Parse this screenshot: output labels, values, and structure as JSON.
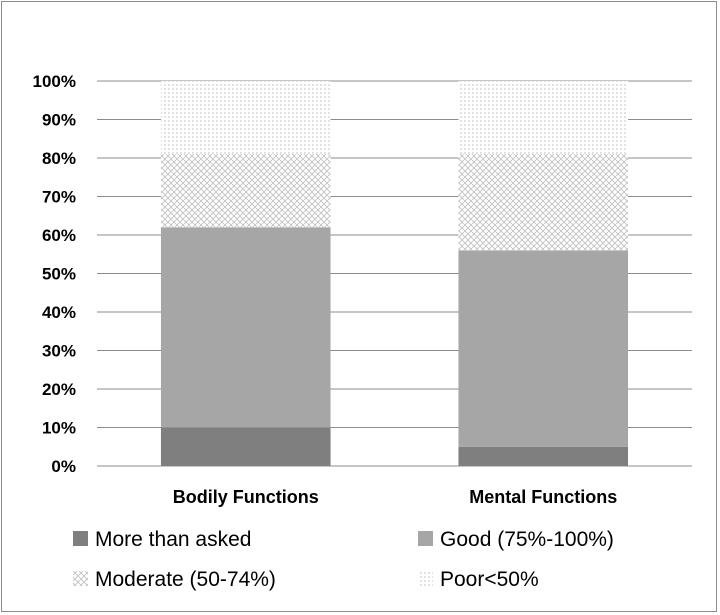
{
  "chart_data": {
    "type": "bar",
    "stacked": true,
    "percent": true,
    "categories": [
      "Bodily Functions",
      "Mental Functions"
    ],
    "series": [
      {
        "name": "More than asked",
        "values": [
          10,
          5
        ],
        "color": "#7f7f7f",
        "pattern": "solid"
      },
      {
        "name": "Good (75%-100%)",
        "values": [
          52,
          51
        ],
        "color": "#a6a6a6",
        "pattern": "solid"
      },
      {
        "name": "Moderate (50-74%)",
        "values": [
          19,
          25
        ],
        "color": "#bfbfbf",
        "pattern": "crosshatch"
      },
      {
        "name": "Poor<50%",
        "values": [
          19,
          19
        ],
        "color": "#8c8c8c",
        "pattern": "dots"
      }
    ],
    "yticks": [
      "0%",
      "10%",
      "20%",
      "30%",
      "40%",
      "50%",
      "60%",
      "70%",
      "80%",
      "90%",
      "100%"
    ],
    "ylim": [
      0,
      100
    ],
    "grid": true,
    "legend": "bottom"
  }
}
